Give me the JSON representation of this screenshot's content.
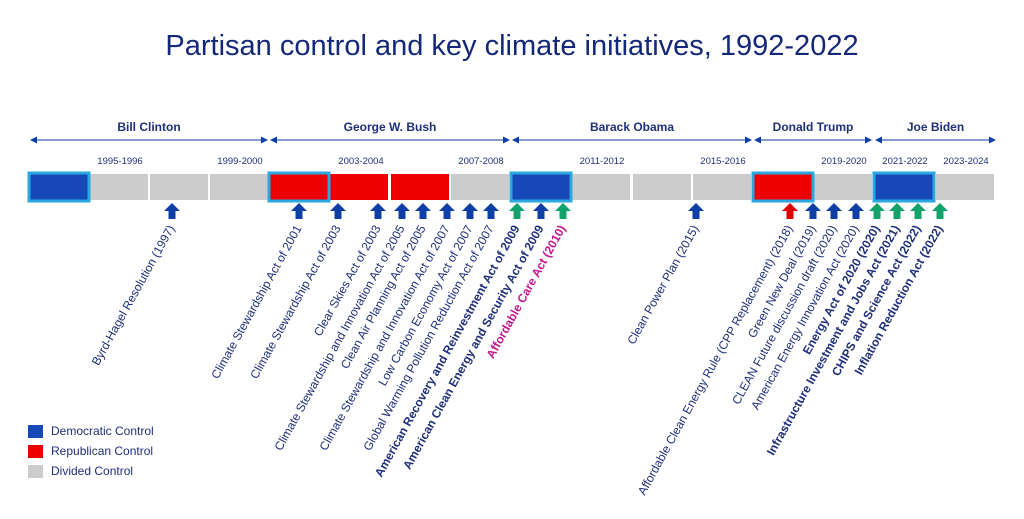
{
  "title": "Partisan control and key climate initiatives, 1992-2022",
  "colors": {
    "democratic": "#1648b8",
    "republican": "#ee0000",
    "divided": "#cccccc",
    "highlight_border": "#2aa8df",
    "arrow_navy": "#0d3fa6",
    "arrow_green": "#12a36b",
    "arrow_red": "#e00000",
    "text_navy": "#1f2f7a",
    "text_magenta": "#c2188f"
  },
  "presidents": [
    "Bill Clinton",
    "George W. Bush",
    "Barack Obama",
    "Donald Trump",
    "Joe Biden"
  ],
  "period_labels": [
    "1995-1996",
    "1999-2000",
    "2003-2004",
    "2007-2008",
    "2011-2012",
    "2015-2016",
    "2019-2020",
    "2021-2022",
    "2023-2024"
  ],
  "congress_control": [
    "D",
    "V",
    "V",
    "V",
    "R",
    "R",
    "R",
    "V",
    "D",
    "V",
    "V",
    "V",
    "R",
    "V",
    "D",
    "V"
  ],
  "highlighted_segments": [
    0,
    4,
    8,
    12,
    14
  ],
  "events": [
    {
      "label": "Byrd-Hagel Resolution (1997)",
      "arrow": "navy",
      "style": "normal"
    },
    {
      "label": "Climate Stewardship Act of 2001",
      "arrow": "navy",
      "style": "normal"
    },
    {
      "label": "Climate Stewardship Act of 2003",
      "arrow": "navy",
      "style": "normal"
    },
    {
      "label": "Clear Skies Act of 2003",
      "arrow": "navy",
      "style": "normal"
    },
    {
      "label": "Climate Stewardship and Innovation Act of 2005",
      "arrow": "navy",
      "style": "normal"
    },
    {
      "label": "Clean Air Planning Act of 2005",
      "arrow": "navy",
      "style": "normal"
    },
    {
      "label": "Climate Stewardship and Innovation Act of 2007",
      "arrow": "navy",
      "style": "normal"
    },
    {
      "label": "Low Carbon Economy Act of 2007",
      "arrow": "navy",
      "style": "normal"
    },
    {
      "label": "Global Warming Pollution Reduction Act of 2007",
      "arrow": "navy",
      "style": "normal"
    },
    {
      "label": "American Recovery and Reinvestment Act of 2009",
      "arrow": "green",
      "style": "bold"
    },
    {
      "label": "American Clean Energy and Security Act of 2009",
      "arrow": "navy",
      "style": "bold"
    },
    {
      "label": "Affordable Care Act (2010)",
      "arrow": "green",
      "style": "magenta"
    },
    {
      "label": "Clean Power Plan (2015)",
      "arrow": "navy",
      "style": "normal"
    },
    {
      "label": "Affordable Clean Energy Rule (CPP Replacement) (2018)",
      "arrow": "red",
      "style": "normal"
    },
    {
      "label": "Green New Deal (2019)",
      "arrow": "navy",
      "style": "normal"
    },
    {
      "label": "CLEAN Future discussion draft (2020)",
      "arrow": "navy",
      "style": "normal"
    },
    {
      "label": "American Energy Innovation Act (2020)",
      "arrow": "navy",
      "style": "normal"
    },
    {
      "label": "Energy Act of 2020 (2020)",
      "arrow": "green",
      "style": "bold"
    },
    {
      "label": "Infrastructure Investment and Jobs Act (2021)",
      "arrow": "green",
      "style": "bold"
    },
    {
      "label": "CHIPS and Science Act (2022)",
      "arrow": "green",
      "style": "bold"
    },
    {
      "label": "Inflation Reduction Act (2022)",
      "arrow": "green",
      "style": "bold"
    }
  ],
  "legend": [
    {
      "label": "Democratic Control",
      "color": "#1648b8"
    },
    {
      "label": "Republican Control",
      "color": "#ee0000"
    },
    {
      "label": "Divided Control",
      "color": "#cccccc"
    }
  ]
}
